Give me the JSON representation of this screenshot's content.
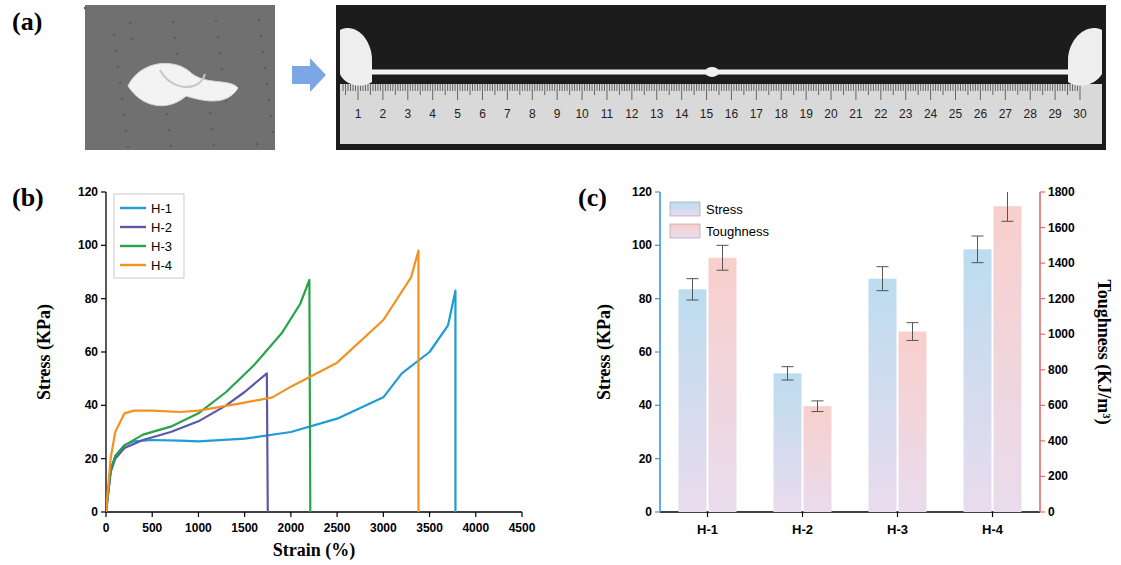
{
  "photo_panel": {
    "panel": "(a)",
    "ruler_labels": [
      1,
      2,
      3,
      4,
      5,
      6,
      7,
      8,
      9,
      10,
      11,
      12,
      13,
      14,
      15,
      16,
      17,
      18,
      19,
      20,
      21,
      22,
      23,
      24,
      25,
      26,
      27,
      28,
      29,
      30
    ]
  },
  "chart_data": [
    {
      "panel": "(b)",
      "type": "line",
      "x_label": "Strain (%)",
      "y_label": "Stress (KPa)",
      "xlim": [
        0,
        4500
      ],
      "xticks": [
        0,
        500,
        1000,
        1500,
        2000,
        2500,
        3000,
        3500,
        4000,
        4500
      ],
      "ylim": [
        0,
        120
      ],
      "yticks": [
        0,
        20,
        40,
        60,
        80,
        100,
        120
      ],
      "legend": "upper left",
      "series": [
        {
          "name": "H-1",
          "color": "#1f9bd7",
          "x": [
            0,
            50,
            100,
            200,
            300,
            500,
            800,
            1000,
            1500,
            2000,
            2500,
            3000,
            3200,
            3500,
            3700,
            3780,
            3780
          ],
          "values": [
            0,
            15,
            21,
            25,
            26.5,
            27,
            26.8,
            26.5,
            27.5,
            30,
            35,
            43,
            52,
            60,
            70,
            83,
            0
          ]
        },
        {
          "name": "H-2",
          "color": "#5b58a8",
          "x": [
            0,
            50,
            100,
            200,
            400,
            700,
            1000,
            1300,
            1500,
            1740,
            1750
          ],
          "values": [
            0,
            15,
            20,
            24,
            27,
            30,
            34,
            40,
            45,
            52,
            0
          ]
        },
        {
          "name": "H-3",
          "color": "#2aa24a",
          "x": [
            0,
            50,
            100,
            200,
            400,
            700,
            1000,
            1300,
            1600,
            1900,
            2100,
            2200,
            2210
          ],
          "values": [
            0,
            16,
            21,
            25,
            29,
            32,
            37,
            45,
            55,
            67,
            78,
            87,
            0
          ]
        },
        {
          "name": "H-4",
          "color": "#f39121",
          "x": [
            0,
            50,
            100,
            200,
            300,
            500,
            800,
            1000,
            1500,
            1800,
            2000,
            2500,
            3000,
            3300,
            3380,
            3380
          ],
          "values": [
            0,
            20,
            30,
            37,
            38,
            38,
            37.5,
            38,
            41,
            43,
            47,
            56,
            72,
            88,
            98,
            0
          ]
        }
      ]
    },
    {
      "panel": "(c)",
      "type": "bar",
      "categories": [
        "H-1",
        "H-2",
        "H-3",
        "H-4"
      ],
      "y_label": "Stress (KPa)",
      "y2_label": "Toughness (KJ/m³)",
      "ylim": [
        0,
        120
      ],
      "yticks": [
        0,
        20,
        40,
        60,
        80,
        100,
        120
      ],
      "y2lim": [
        0,
        1800
      ],
      "y2ticks": [
        0,
        200,
        400,
        600,
        800,
        1000,
        1200,
        1400,
        1600,
        1800
      ],
      "legend": "upper left",
      "series": [
        {
          "name": "Stress",
          "color": "#bcdcf0",
          "values": [
            83.5,
            52,
            87.5,
            98.5
          ],
          "errors": [
            4,
            2.5,
            4.5,
            5
          ]
        },
        {
          "name": "Toughness",
          "color": "#f8cfcc",
          "axis": "y2",
          "values": [
            1430,
            595,
            1015,
            1720
          ],
          "errors": [
            70,
            30,
            50,
            85
          ]
        }
      ]
    }
  ]
}
